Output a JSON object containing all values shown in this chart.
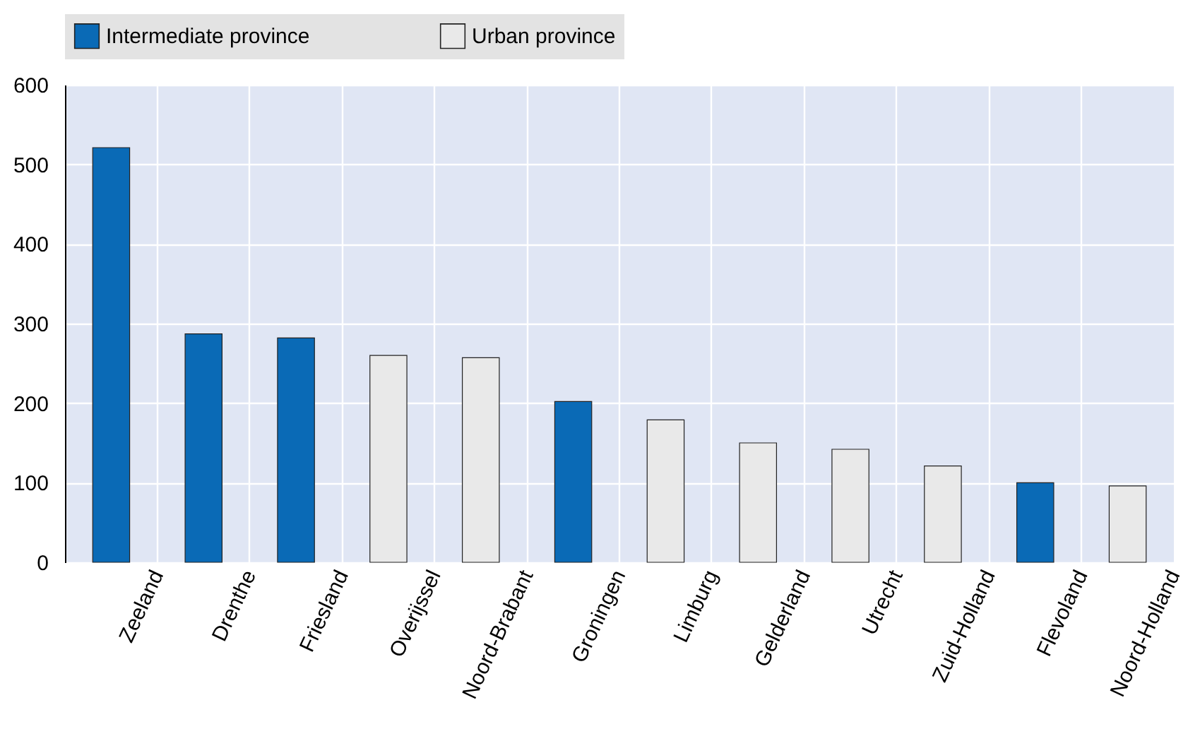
{
  "chart_data": {
    "type": "bar",
    "categories": [
      "Zeeland",
      "Drenthe",
      "Friesland",
      "Overijssel",
      "Noord-Brabant",
      "Groningen",
      "Limburg",
      "Gelderland",
      "Utrecht",
      "Zuid-Holland",
      "Flevoland",
      "Noord-Holland"
    ],
    "series": [
      {
        "name": "Intermediate province",
        "color": "#0a6ab6",
        "values": [
          521,
          287,
          282,
          null,
          null,
          202,
          null,
          null,
          null,
          null,
          100,
          null
        ]
      },
      {
        "name": "Urban province",
        "color": "#e9e9e9",
        "values": [
          null,
          null,
          null,
          260,
          257,
          null,
          179,
          150,
          142,
          121,
          null,
          96
        ]
      }
    ],
    "ylim": [
      0,
      600
    ],
    "yticks": [
      0,
      100,
      200,
      300,
      400,
      500,
      600
    ],
    "grid": true,
    "legend": "top"
  }
}
